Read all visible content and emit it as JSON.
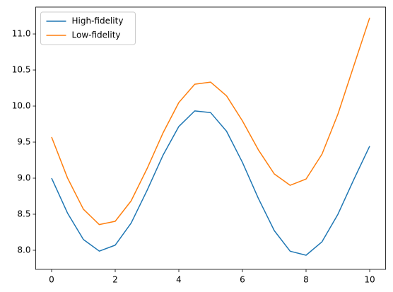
{
  "chart_data": {
    "type": "line",
    "x": [
      0,
      0.5,
      1,
      1.5,
      2,
      2.5,
      3,
      3.5,
      4,
      4.5,
      5,
      5.5,
      6,
      6.5,
      7,
      7.5,
      8,
      8.5,
      9,
      9.5,
      10
    ],
    "series": [
      {
        "name": "High-fidelity",
        "color": "#1f77b4",
        "values": [
          9.0,
          8.516,
          8.149,
          7.988,
          8.071,
          8.377,
          8.829,
          9.316,
          9.717,
          9.933,
          9.909,
          9.651,
          9.219,
          8.72,
          8.273,
          7.987,
          7.931,
          8.117,
          8.498,
          8.98,
          9.444
        ]
      },
      {
        "name": "Low-fidelity",
        "color": "#ff7f0e",
        "values": [
          9.57,
          9.003,
          8.569,
          8.356,
          8.402,
          8.685,
          9.131,
          9.625,
          10.049,
          10.303,
          10.332,
          10.142,
          9.794,
          9.393,
          9.059,
          8.901,
          8.988,
          9.332,
          9.886,
          10.557,
          11.224
        ]
      }
    ],
    "xlim": [
      -0.5,
      10.5
    ],
    "ylim": [
      7.735,
      11.373
    ],
    "xticks": [
      0,
      2,
      4,
      6,
      8,
      10
    ],
    "yticks": [
      {
        "value": 8,
        "label": "8.0"
      },
      8.5,
      {
        "value": 9,
        "label": "9.0"
      },
      9.5,
      {
        "value": 10,
        "label": "10.0"
      },
      10.5,
      {
        "value": 11,
        "label": "11.0"
      }
    ],
    "legend": "upper left"
  }
}
